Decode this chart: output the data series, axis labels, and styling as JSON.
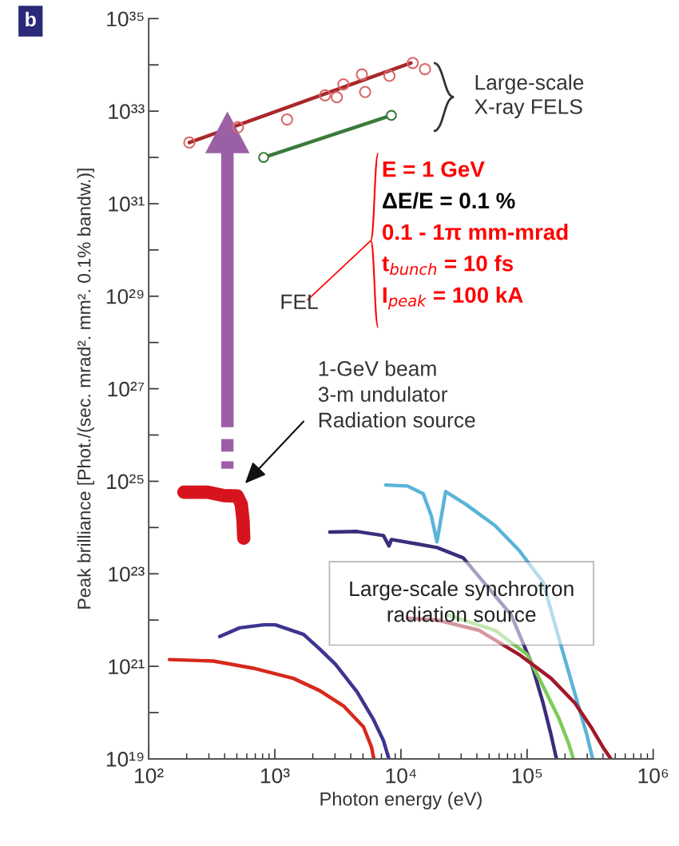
{
  "chart_data": {
    "type": "line",
    "xlabel": "Photon energy (eV)",
    "ylabel": "Peak brilliance [Phot./(sec. mrad². mm². 0.1% bandw.)]",
    "log": "xy",
    "xlim": [
      100,
      1000000
    ],
    "ylim": [
      1e+19,
      1e+35
    ],
    "xticks": [
      {
        "value": 100,
        "label": "10²"
      },
      {
        "value": 1000,
        "label": "10³"
      },
      {
        "value": 10000,
        "label": "10⁴"
      },
      {
        "value": 100000,
        "label": "10⁵"
      },
      {
        "value": 1000000,
        "label": "10⁶"
      }
    ],
    "yticks": [
      {
        "value": 1e+19,
        "label": "10¹⁹"
      },
      {
        "value": 1e+20,
        "label": null
      },
      {
        "value": 1e+21,
        "label": "10²¹"
      },
      {
        "value": 1e+22,
        "label": null
      },
      {
        "value": 1e+23,
        "label": "10²³"
      },
      {
        "value": 1e+24,
        "label": null
      },
      {
        "value": 1e+25,
        "label": "10²⁵"
      },
      {
        "value": 1e+26,
        "label": null
      },
      {
        "value": 1e+27,
        "label": "10²⁷"
      },
      {
        "value": 1e+28,
        "label": null
      },
      {
        "value": 1e+29,
        "label": "10²⁹"
      },
      {
        "value": 1e+30,
        "label": null
      },
      {
        "value": 1e+31,
        "label": "10³¹"
      },
      {
        "value": 1e+32,
        "label": null
      },
      {
        "value": 1e+33,
        "label": "10³³"
      },
      {
        "value": 1e+34,
        "label": null
      },
      {
        "value": 1e+35,
        "label": "10³⁵"
      }
    ],
    "series": [
      {
        "color": "#a8282a",
        "x": [
          210,
          12000
        ],
        "values": [
          2.1e+32,
          1.1e+34
        ]
      },
      {
        "type": "scatter",
        "marker": "circle",
        "color": "#d9686a",
        "x": [
          210,
          510,
          1250,
          2500,
          3100,
          3500,
          4900,
          5200,
          8100,
          12400,
          15500
        ],
        "values": [
          2.1e+32,
          4.5e+32,
          6.6e+32,
          2.2e+33,
          2e+33,
          3.8e+33,
          6.2e+33,
          2.6e+33,
          5.8e+33,
          1.1e+34,
          8.1e+33
        ]
      },
      {
        "marker": "circle",
        "color": "#3a7a3a",
        "x": [
          815,
          8400
        ],
        "values": [
          1e+32,
          8.1e+32
        ]
      },
      {
        "color": "#d7141e",
        "x": [
          190,
          294,
          394,
          504,
          542,
          560,
          567
        ],
        "values": [
          5.8e+24,
          5.8e+24,
          4.9e+24,
          4.8e+24,
          3.2e+24,
          1.4e+24,
          5.9e+23
        ]
      },
      {
        "color": "#d62a1c",
        "x": [
          146,
          326,
          675,
          1400,
          2260,
          3500,
          5050,
          5840,
          6100
        ],
        "values": [
          1.4e+21,
          1.3e+21,
          9.1e+20,
          5.5e+20,
          3e+20,
          1.4e+20,
          4.9e+19,
          1.8e+19,
          1e+19
        ]
      },
      {
        "color": "#3d3590",
        "x": [
          366,
          527,
          815,
          1010,
          1690,
          2260,
          3030,
          4490,
          6000,
          7260,
          7800,
          8030
        ],
        "values": [
          4.4e+21,
          6.8e+21,
          7.9e+21,
          7.9e+21,
          4.9e+21,
          2.4e+21,
          1.1e+21,
          2.8e+20,
          7.4e+19,
          2.5e+19,
          1.3e+19,
          1e+19
        ]
      },
      {
        "color": "#5ab4d8",
        "x": [
          7590,
          11200,
          15000,
          17400,
          19300,
          22600,
          32600,
          37700,
          55800,
          86500,
          134000,
          179000,
          240000,
          298000,
          331000
        ],
        "values": [
          8.3e+24,
          7.9e+24,
          5.4e+24,
          1.8e+24,
          4.9e+23,
          6e+24,
          3.2e+24,
          2.4e+24,
          1.1e+24,
          3.2e+23,
          6.6e+22,
          4e+21,
          2.5e+20,
          3.3e+19,
          1e+19
        ]
      },
      {
        "color": "#3a2e7a",
        "x": [
          2730,
          4490,
          7260,
          8040,
          8400,
          13000,
          19300,
          31200,
          74700,
          108000,
          134000,
          155000,
          171000
        ],
        "values": [
          8e+23,
          8.2e+23,
          6.7e+23,
          4e+23,
          5.5e+23,
          4.5e+23,
          3.7e+23,
          2.2e+23,
          1.3e+22,
          1.2e+21,
          1.6e+20,
          3.3e+19,
          1e+19
        ]
      },
      {
        "color": "#7ccb5a",
        "x": [
          23300,
          55800,
          100000,
          134000,
          179000,
          213000,
          233000
        ],
        "values": [
          1.3e+22,
          6e+21,
          1.8e+21,
          3.7e+20,
          7.4e+19,
          2.2e+19,
          1e+19
        ]
      },
      {
        "color": "#a0182a",
        "x": [
          11200,
          19300,
          41700,
          86500,
          155000,
          240000,
          321000,
          399000,
          462000
        ],
        "values": [
          1.1e+22,
          1e+22,
          6e+21,
          1.8e+21,
          5.5e+20,
          1.6e+20,
          4.9e+19,
          1.8e+19,
          1e+19
        ]
      }
    ],
    "annotations": [
      "b",
      "Large-scale\nX-ray FELS",
      "FEL",
      "E = 1 GeV",
      "ΔE/E = 0.1 %",
      "0.1 - 1π mm-mrad",
      "t$_{bunch}$ = 10 fs",
      "I$_{peak}$ = 100 kA",
      "1-GeV beam\n3-m undulator\nRadiation source",
      "Large-scale synchrotron\nradiation source"
    ]
  }
}
